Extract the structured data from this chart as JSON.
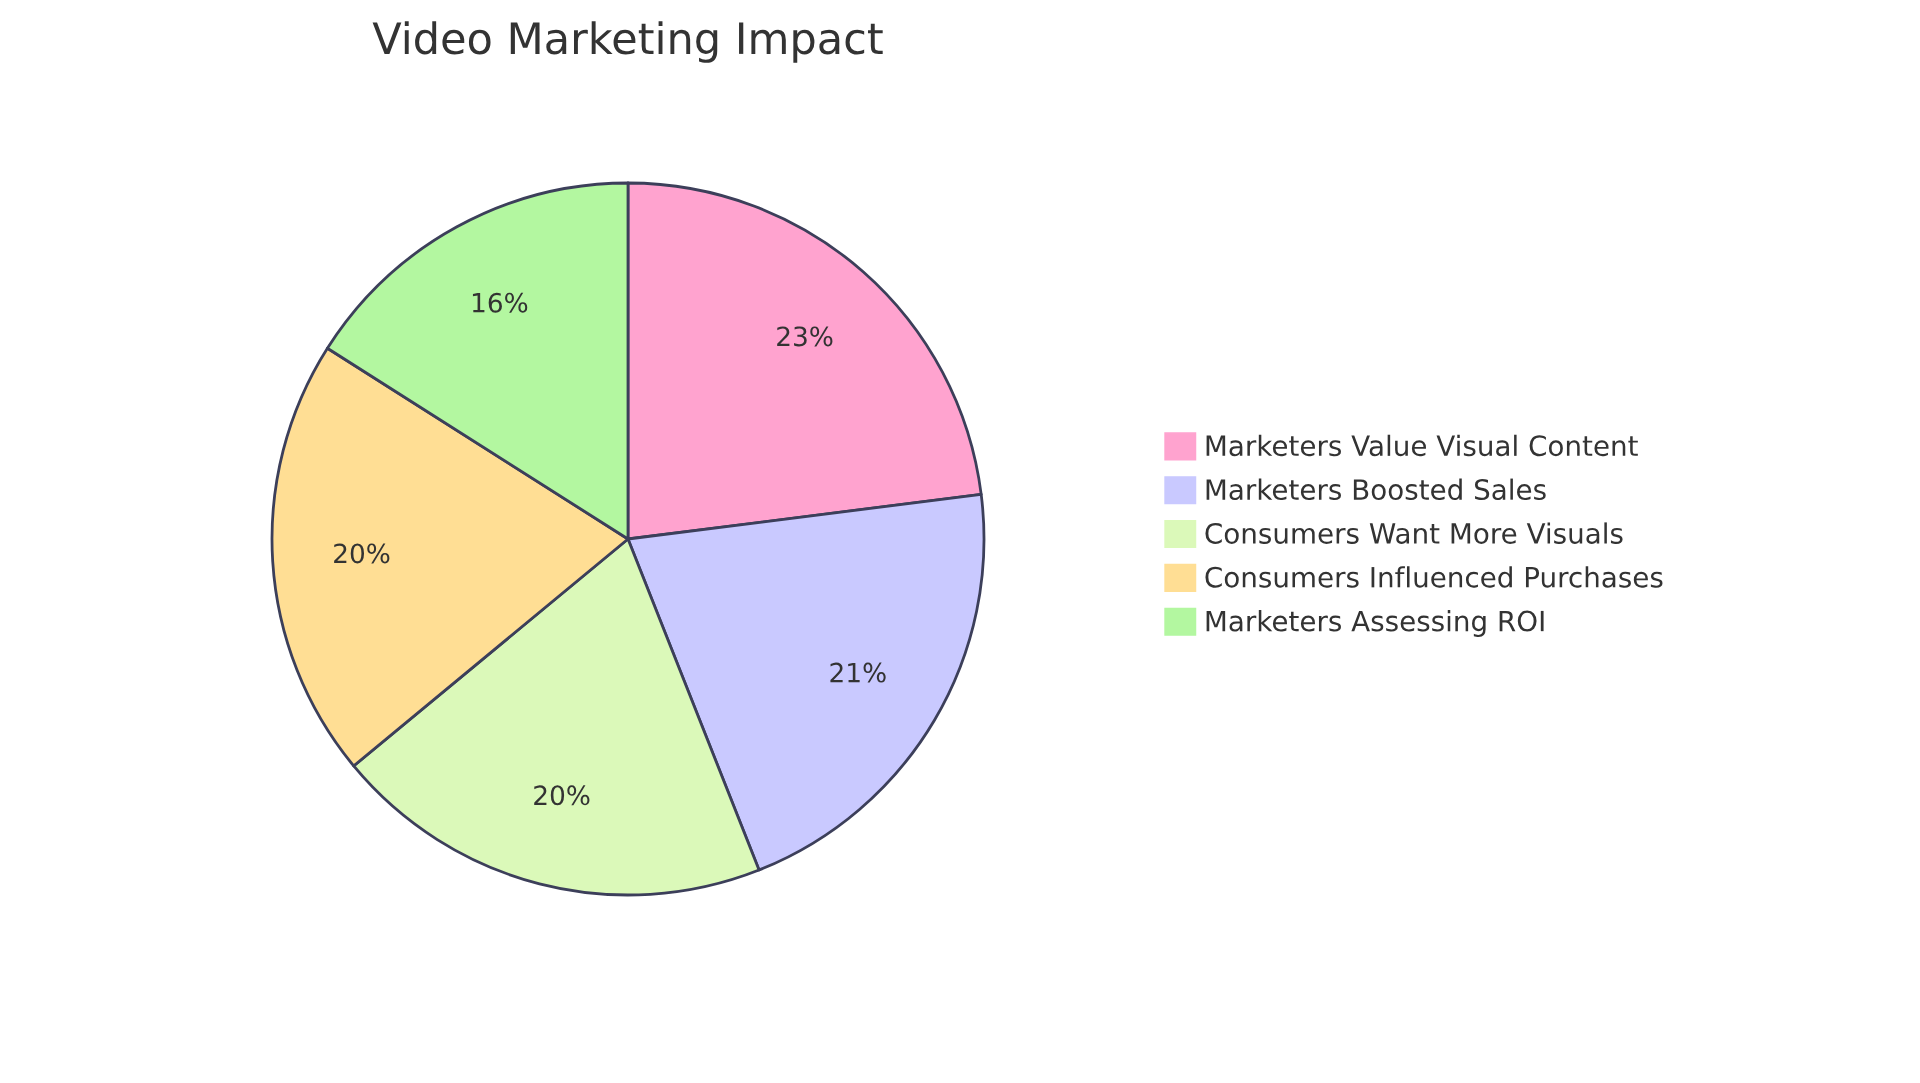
{
  "chart_data": {
    "type": "pie",
    "title": "Video Marketing Impact",
    "categories": [
      "Marketers Value Visual Content",
      "Marketers Boosted Sales",
      "Consumers Want More Visuals",
      "Consumers Influenced Purchases",
      "Marketers Assessing ROI"
    ],
    "values": [
      23,
      21,
      20,
      20,
      16
    ],
    "colors": [
      "#ffa3cf",
      "#c9c9ff",
      "#dbf9b9",
      "#ffde94",
      "#b3f7a0"
    ],
    "value_labels": [
      "23%",
      "21%",
      "20%",
      "20%",
      "16%"
    ],
    "legend": "right"
  }
}
